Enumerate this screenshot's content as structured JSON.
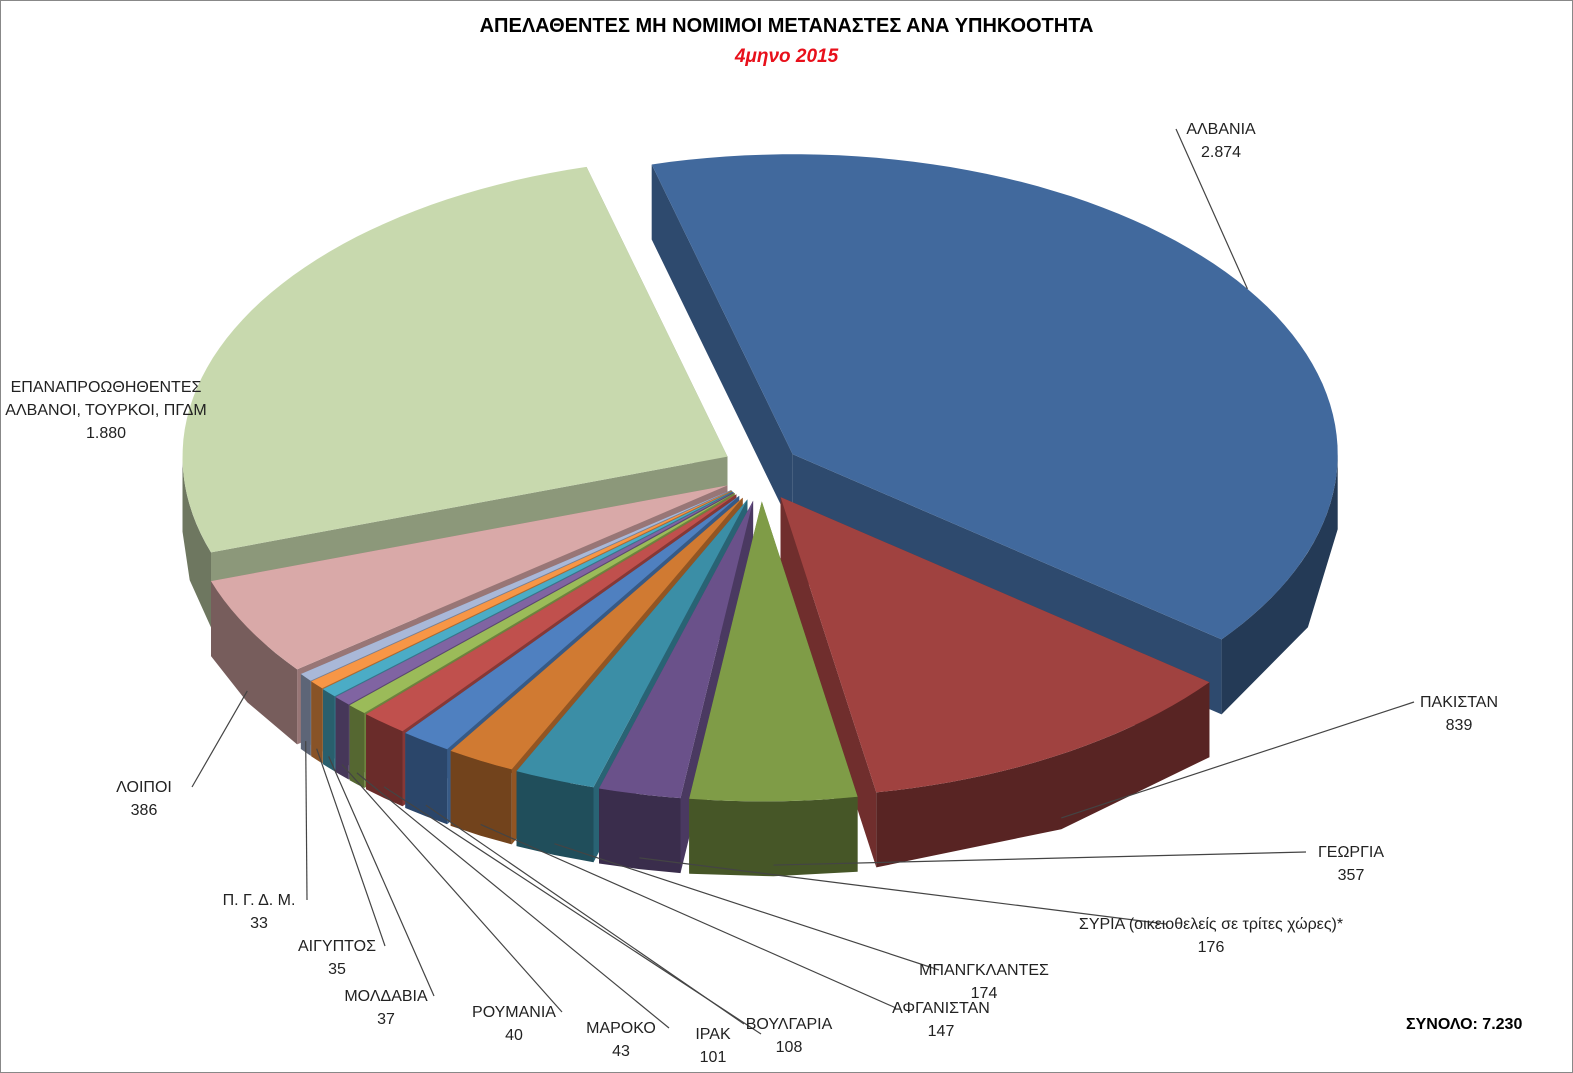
{
  "chart_data": {
    "type": "pie3d",
    "title": "ΑΠΕΛΑΘΕΝΤΕΣ ΜΗ ΝΟΜΙΜΟΙ ΜΕΤΑΝΑΣΤΕΣ ΑΝΑ ΥΠΗΚΟΟΤΗΤΑ",
    "subtitle": "4μηνο 2015",
    "categories": [
      "ΑΛΒΑΝΙΑ",
      "ΠΑΚΙΣΤΑΝ",
      "ΓΕΩΡΓΙΑ",
      "ΣΥΡΙΑ (οικειοθελείς σε τρίτες χώρες)*",
      "ΜΠΑΝΓΚΛΑΝΤΕΣ",
      "ΑΦΓΑΝΙΣΤΑΝ",
      "ΒΟΥΛΓΑΡΙΑ",
      "ΙΡΑΚ",
      "ΜΑΡΟΚΟ",
      "ΡΟΥΜΑΝΙΑ",
      "ΜΟΛΔΑΒΙΑ",
      "ΑΙΓΥΠΤΟΣ",
      "Π. Γ. Δ. Μ.",
      "ΛΟΙΠΟΙ",
      "ΕΠΑΝΑΠΡΟΩΘΗΘΕΝΤΕΣ ΑΛΒΑΝΟΙ, ΤΟΥΡΚΟΙ, ΠΓΔΜ"
    ],
    "values": [
      2874,
      839,
      357,
      176,
      174,
      147,
      108,
      101,
      43,
      40,
      37,
      35,
      33,
      386,
      1880
    ],
    "value_labels": [
      "2.874",
      "839",
      "357",
      "176",
      "174",
      "147",
      "108",
      "101",
      "43",
      "40",
      "37",
      "35",
      "33",
      "386",
      "1.880"
    ],
    "colors": [
      "#41699d",
      "#a04240",
      "#7f9c47",
      "#6a518a",
      "#3b8ea6",
      "#d07a32",
      "#4f80c0",
      "#c0504d",
      "#9bbb59",
      "#8064a2",
      "#4bacc6",
      "#f79646",
      "#a9b8d8",
      "#d9a9a8",
      "#c8d9ae"
    ],
    "total_label": "ΣΥΝΟΛΟ: 7.230"
  }
}
